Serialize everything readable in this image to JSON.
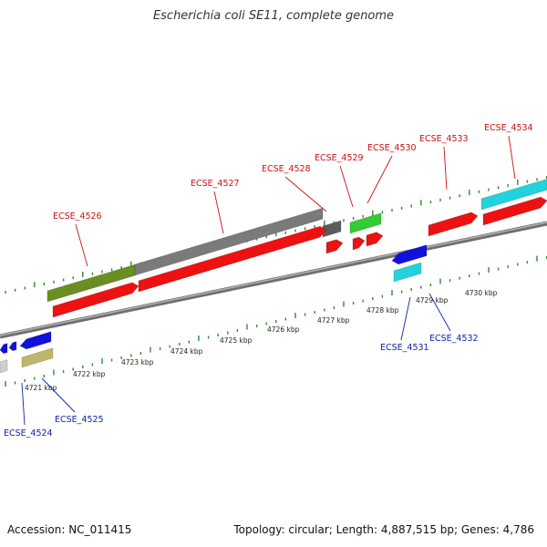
{
  "header": {
    "title": "Escherichia coli SE11, complete genome"
  },
  "footer": {
    "accession": "Accession: NC_011415",
    "info": "Topology: circular; Length: 4,887,515 bp; Genes: 4,786"
  },
  "colors": {
    "backbone": "#8e8e8e",
    "tick": "#2e8b2e",
    "forward_label": "#cc1111",
    "reverse_label": "#1122aa",
    "cds_red": "#ee1111",
    "gene_gray": "#7a7a7a",
    "gene_olive": "#6b8e23",
    "gene_green": "#33cc33",
    "gene_cyan": "#22d3dd",
    "gene_blue": "#1111dd",
    "gene_khaki": "#bdb76b"
  },
  "kbp_labels": [
    "4721 kbp",
    "4722 kbp",
    "4723 kbp",
    "4724 kbp",
    "4725 kbp",
    "4726 kbp",
    "4727 kbp",
    "4728 kbp",
    "4729 kbp",
    "4730 kbp"
  ],
  "forward_gene_labels": [
    "ECSE_4526",
    "ECSE_4527",
    "ECSE_4528",
    "ECSE_4529",
    "ECSE_4530",
    "ECSE_4533",
    "ECSE_4534"
  ],
  "reverse_gene_labels": [
    "ECSE_4524",
    "ECSE_4525",
    "ECSE_4531",
    "ECSE_4532"
  ]
}
